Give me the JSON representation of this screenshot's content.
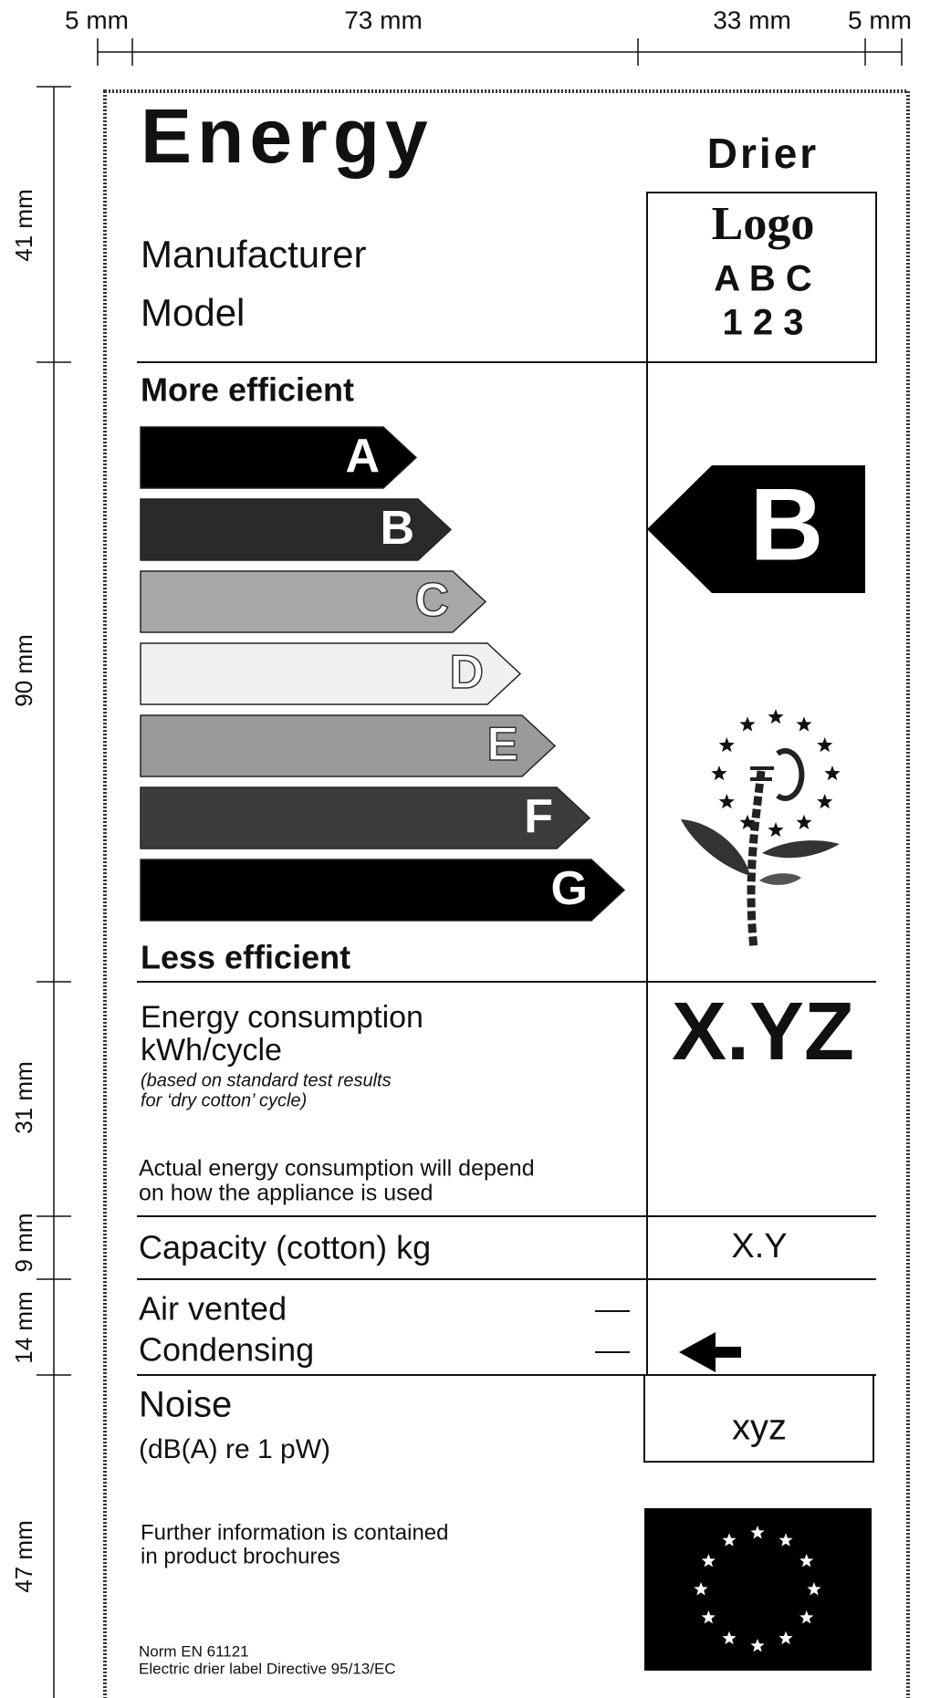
{
  "dimensions": {
    "top": [
      "5 mm",
      "73 mm",
      "33 mm",
      "5 mm"
    ],
    "left": [
      "41 mm",
      "90 mm",
      "31 mm",
      "9 mm",
      "14 mm",
      "47 mm"
    ]
  },
  "header": {
    "title": "Energy",
    "appliance": "Drier",
    "manufacturer": "Manufacturer",
    "model": "Model",
    "logo": {
      "line1": "Logo",
      "line2": "A B C",
      "line3": "1 2 3"
    }
  },
  "efficiency": {
    "top_label": "More efficient",
    "bottom_label": "Less efficient",
    "classes": [
      "A",
      "B",
      "C",
      "D",
      "E",
      "F",
      "G"
    ],
    "rating": "B"
  },
  "consumption": {
    "title": "Energy consumption",
    "unit": "kWh/cycle",
    "note_line1": "(based on standard test results",
    "note_line2": "for ‘dry cotton’ cycle)",
    "remark_line1": "Actual energy consumption will depend",
    "remark_line2": "on how the appliance is used",
    "value": "X.YZ"
  },
  "capacity": {
    "label": "Capacity  (cotton)  kg",
    "value": "X.Y"
  },
  "type": {
    "option1": "Air  vented",
    "option2": "Condensing"
  },
  "noise": {
    "label": "Noise",
    "unit": "(dB(A) re 1 pW)",
    "value": "xyz"
  },
  "footer": {
    "info_line1": "Further information is contained",
    "info_line2": "in product brochures",
    "norm": "Norm EN 61121",
    "directive": "Electric drier label Directive 95/13/EC"
  }
}
